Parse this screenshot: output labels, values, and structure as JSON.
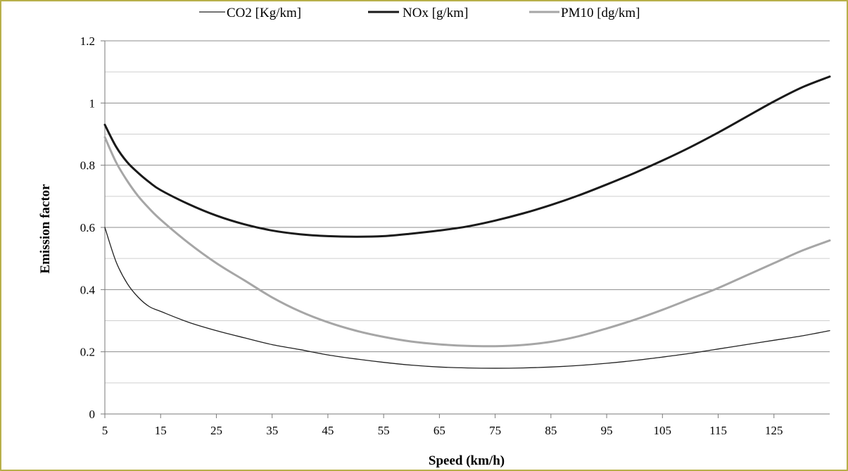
{
  "chart_data": {
    "type": "line",
    "title": "",
    "xlabel": "Speed (km/h)",
    "ylabel": "Emission factor",
    "xlim": [
      5,
      135
    ],
    "ylim": [
      0,
      1.2
    ],
    "x_ticks": [
      5,
      15,
      25,
      35,
      45,
      55,
      65,
      75,
      85,
      95,
      105,
      115,
      125
    ],
    "y_ticks": [
      0,
      0.2,
      0.4,
      0.6,
      0.8,
      1,
      1.2
    ],
    "y_tick_labels": [
      "0",
      "0.2",
      "0.4",
      "0.6",
      "0.8",
      "1",
      "1.2"
    ],
    "grid": "horizontal",
    "legend_position": "top",
    "x": [
      5,
      7,
      9,
      11,
      13,
      15,
      20,
      25,
      30,
      35,
      40,
      45,
      50,
      55,
      60,
      65,
      70,
      75,
      80,
      85,
      90,
      95,
      100,
      105,
      110,
      115,
      120,
      125,
      130,
      135
    ],
    "series": [
      {
        "name": "CO2 [Kg/km]",
        "color": "#222222",
        "width": 1.3,
        "values": [
          0.6,
          0.49,
          0.42,
          0.375,
          0.345,
          0.33,
          0.295,
          0.268,
          0.245,
          0.223,
          0.207,
          0.19,
          0.177,
          0.166,
          0.157,
          0.151,
          0.148,
          0.147,
          0.148,
          0.151,
          0.156,
          0.163,
          0.172,
          0.183,
          0.195,
          0.209,
          0.223,
          0.237,
          0.251,
          0.268
        ]
      },
      {
        "name": "NOx [g/km]",
        "color": "#1a1a1a",
        "width": 3,
        "values": [
          0.93,
          0.86,
          0.81,
          0.775,
          0.745,
          0.72,
          0.675,
          0.638,
          0.61,
          0.59,
          0.578,
          0.572,
          0.57,
          0.572,
          0.58,
          0.59,
          0.603,
          0.622,
          0.645,
          0.672,
          0.703,
          0.738,
          0.775,
          0.815,
          0.858,
          0.905,
          0.955,
          1.005,
          1.05,
          1.085
        ]
      },
      {
        "name": "PM10 [dg/km]",
        "color": "#a6a6a6",
        "width": 3,
        "values": [
          0.89,
          0.81,
          0.75,
          0.7,
          0.66,
          0.625,
          0.55,
          0.485,
          0.43,
          0.375,
          0.33,
          0.295,
          0.268,
          0.248,
          0.233,
          0.224,
          0.219,
          0.218,
          0.222,
          0.232,
          0.25,
          0.275,
          0.303,
          0.335,
          0.37,
          0.405,
          0.445,
          0.485,
          0.525,
          0.558
        ]
      }
    ]
  }
}
